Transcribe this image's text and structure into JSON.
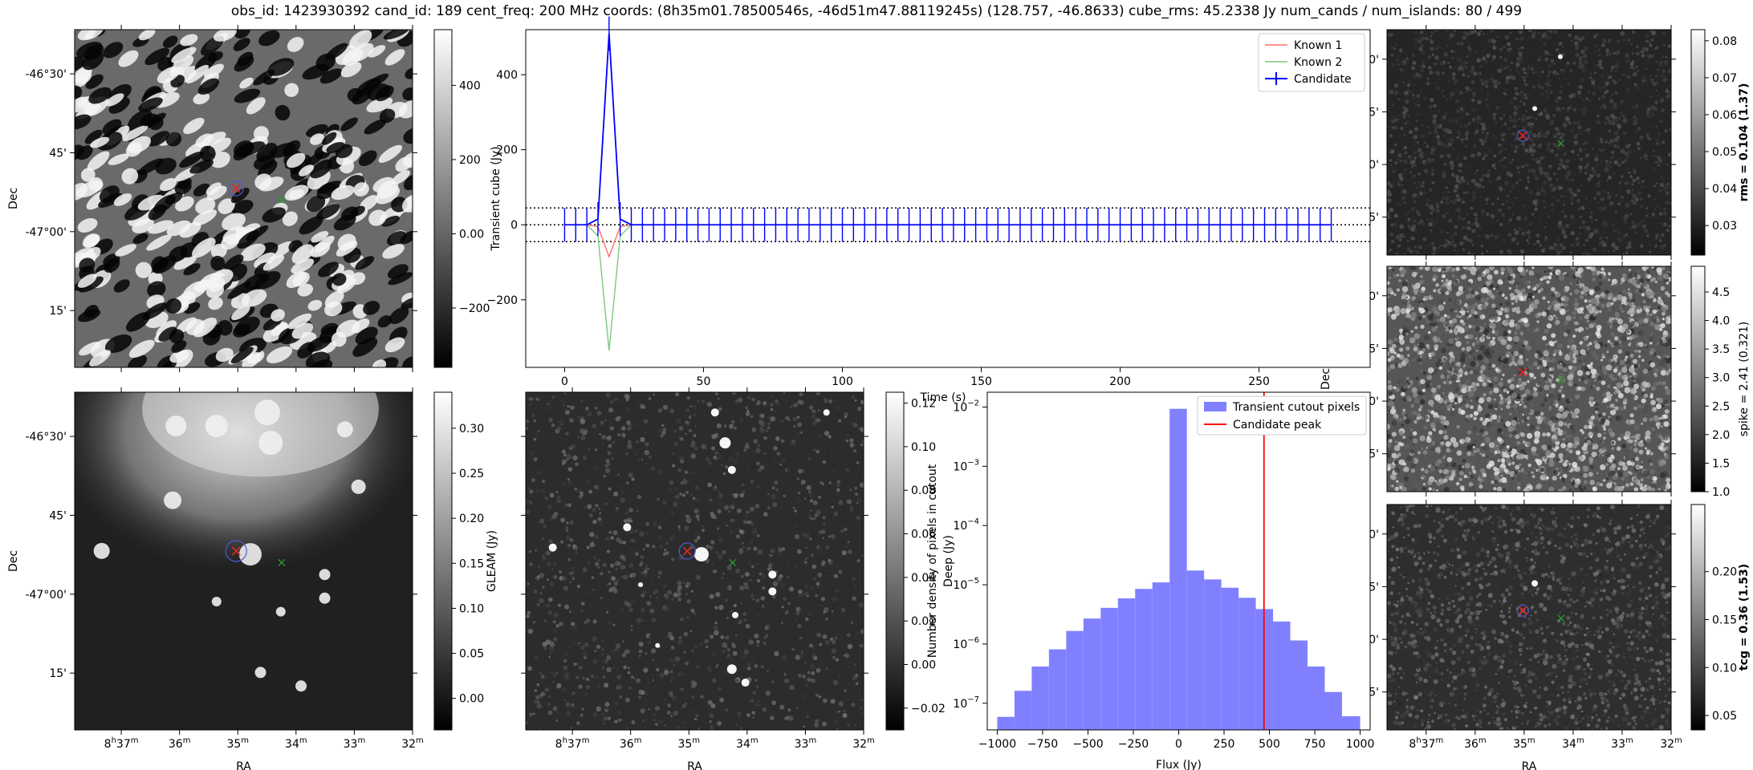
{
  "suptitle": "obs_id: 1423930392 cand_id: 189 cent_freq: 200 MHz coords: (8h35m01.78500546s, -46d51m47.88119245s) (128.757, -46.8633) cube_rms: 45.2338 Jy num_cands / num_islands: 80 / 499",
  "sky_axes": {
    "xlabel": "RA",
    "ylabel": "Dec",
    "ra_ticks": [
      "8h37m",
      "36m",
      "35m",
      "34m",
      "33m",
      "32m"
    ],
    "dec_ticks": [
      "-46°30'",
      "45'",
      "-47°00'",
      "15'"
    ]
  },
  "markers": {
    "candidate": {
      "ra_h": 8.5838,
      "dec": -46.8633,
      "color": "#e8262a"
    },
    "known": {
      "ra_h": 8.5708,
      "dec": -46.9,
      "color": "#2ca02c"
    }
  },
  "colors": {
    "blue": "#0000ff",
    "red": "#ff6e6e",
    "green": "#7fc77f",
    "hist": "#8080ff",
    "peak": "#ff0000"
  },
  "chart_data": [
    {
      "type": "heatmap",
      "id": "transient_cutout",
      "colorbar_label": "",
      "colorbar_ticks": [
        400,
        200,
        0,
        -200
      ],
      "vlim": [
        -360,
        550
      ],
      "xlabel": "",
      "ylabel": "Dec"
    },
    {
      "type": "line",
      "id": "lightcurve",
      "ylabel": "Transient cube (Jy)",
      "xlabel": "Time (s)",
      "x_ticks": [
        0,
        50,
        100,
        150,
        200,
        250
      ],
      "y_ticks": [
        -200,
        0,
        200,
        400
      ],
      "xlim": [
        -14,
        290
      ],
      "ylim": [
        -380,
        520
      ],
      "dotted_lines": [
        45,
        0,
        -45
      ],
      "legend": [
        "Known 1",
        "Known 2",
        "Candidate"
      ],
      "errorbar": 45,
      "series": [
        {
          "name": "Known 1",
          "points": [
            [
              0,
              0
            ],
            [
              4,
              0
            ],
            [
              8,
              0
            ],
            [
              12,
              -5
            ],
            [
              16,
              -85
            ],
            [
              20,
              -5
            ],
            [
              24,
              0
            ],
            [
              28,
              0
            ],
            [
              32,
              0
            ]
          ]
        },
        {
          "name": "Known 2",
          "points": [
            [
              0,
              0
            ],
            [
              4,
              0
            ],
            [
              8,
              0
            ],
            [
              12,
              -30
            ],
            [
              16,
              -335
            ],
            [
              20,
              -30
            ],
            [
              24,
              0
            ],
            [
              28,
              0
            ],
            [
              32,
              0
            ]
          ]
        },
        {
          "name": "Candidate",
          "points": [
            [
              0,
              0
            ],
            [
              4,
              0
            ],
            [
              8,
              0
            ],
            [
              12,
              15
            ],
            [
              16,
              510
            ],
            [
              20,
              15
            ],
            [
              24,
              0
            ],
            [
              28,
              0
            ],
            [
              32,
              0
            ]
          ],
          "dt": 4,
          "n": 70
        }
      ]
    },
    {
      "type": "heatmap",
      "id": "gleam",
      "colorbar_label": "GLEAM (Jy)",
      "colorbar_ticks": [
        0.3,
        0.25,
        0.2,
        0.15,
        0.1,
        0.05,
        0.0
      ],
      "vlim": [
        -0.035,
        0.34
      ],
      "xlabel": "RA",
      "ylabel": "Dec"
    },
    {
      "type": "heatmap",
      "id": "deep",
      "colorbar_label": "Deep (Jy)",
      "colorbar_ticks": [
        0.12,
        0.1,
        0.08,
        0.06,
        0.04,
        0.02,
        0.0,
        -0.02
      ],
      "vlim": [
        -0.03,
        0.125
      ],
      "xlabel": "RA",
      "ylabel": ""
    },
    {
      "type": "bar",
      "id": "histogram",
      "xlabel": "Flux (Jy)",
      "ylabel": "Number density of pixels in cutout",
      "x_ticks": [
        -1000,
        -750,
        -500,
        -250,
        0,
        250,
        500,
        750,
        1000
      ],
      "y_ticks": [
        "10^-7",
        "10^-6",
        "10^-5",
        "10^-4",
        "10^-3",
        "10^-2"
      ],
      "xlim": [
        -1055,
        1055
      ],
      "ylog_lim": [
        -7.45,
        -1.75
      ],
      "legend": [
        "Transient cutout pixels",
        "Candidate peak"
      ],
      "candidate_peak": 470,
      "bin_edges": [
        -1000,
        -905,
        -810,
        -715,
        -620,
        -525,
        -430,
        -335,
        -240,
        -145,
        -50,
        45,
        140,
        235,
        330,
        425,
        520,
        615,
        710,
        805,
        900,
        1000
      ],
      "log_density": [
        -7.23,
        -6.79,
        -6.38,
        -6.09,
        -5.78,
        -5.57,
        -5.39,
        -5.23,
        -5.07,
        -4.96,
        -2.03,
        -4.76,
        -4.91,
        -5.05,
        -5.22,
        -5.41,
        -5.62,
        -5.94,
        -6.38,
        -6.81,
        -7.22
      ]
    },
    {
      "type": "heatmap",
      "id": "rms",
      "colorbar_label": "rms = 0.104 (1.37)",
      "colorbar_ticks": [
        0.08,
        0.07,
        0.06,
        0.05,
        0.04,
        0.03
      ],
      "vlim": [
        0.022,
        0.083
      ],
      "xlabel": "",
      "ylabel": "Dec"
    },
    {
      "type": "heatmap",
      "id": "spike",
      "colorbar_label": "spike = 2.41 (0.321)",
      "colorbar_ticks": [
        4.5,
        4.0,
        3.5,
        3.0,
        2.5,
        2.0,
        1.5,
        1.0
      ],
      "vlim": [
        1.0,
        4.95
      ],
      "xlabel": "",
      "ylabel": "Dec"
    },
    {
      "type": "heatmap",
      "id": "tcg",
      "colorbar_label": "tcg = 0.36 (1.53)",
      "colorbar_ticks": [
        0.2,
        0.15,
        0.1,
        0.05
      ],
      "vlim": [
        0.035,
        0.27
      ],
      "xlabel": "RA",
      "ylabel": "Dec"
    }
  ]
}
